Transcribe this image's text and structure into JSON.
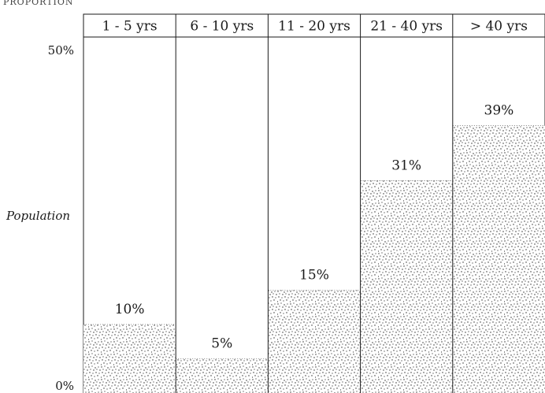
{
  "chart_data": {
    "type": "bar",
    "header": "PROPORTION",
    "categories": [
      "1 - 5 yrs",
      "6 - 10 yrs",
      "11 - 20 yrs",
      "21 - 40 yrs",
      "> 40 yrs"
    ],
    "values": [
      10,
      5,
      15,
      31,
      39
    ],
    "value_labels": [
      "10%",
      "5%",
      "15%",
      "31%",
      "39%"
    ],
    "ylabel": "Population",
    "ylim": [
      0,
      50
    ],
    "yticks": [
      0,
      50
    ],
    "ytick_labels": [
      "0%",
      "50%"
    ],
    "grid": false,
    "legend": "none",
    "fill_style": "stippled",
    "fill_color": "#2b2b2b"
  }
}
